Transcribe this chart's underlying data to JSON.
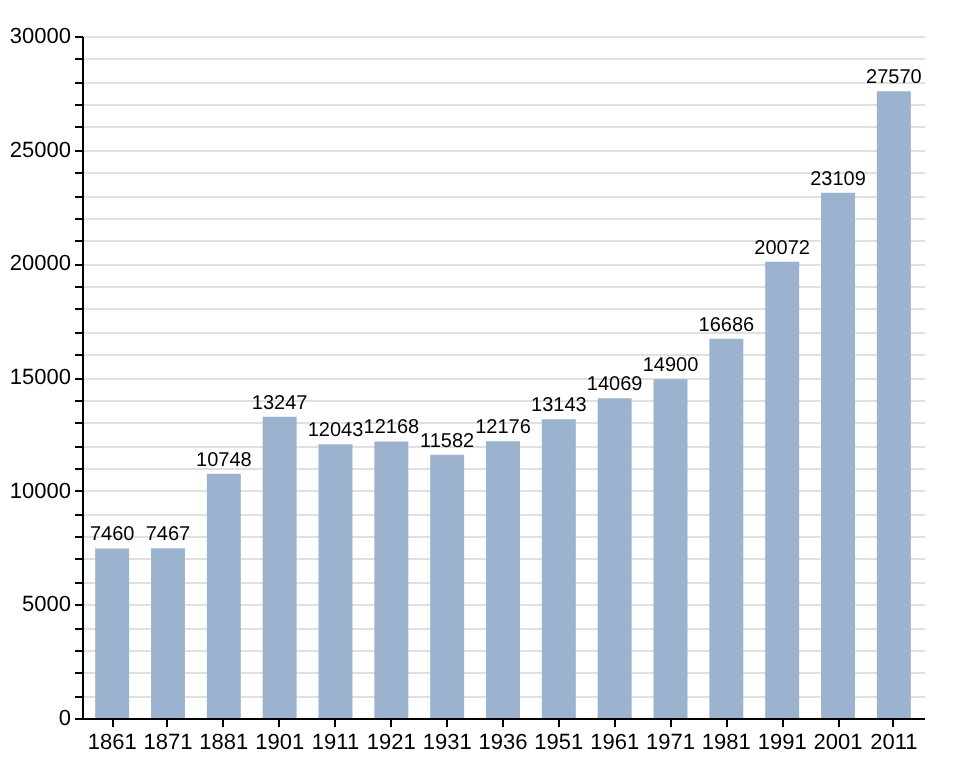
{
  "chart_data": {
    "type": "bar",
    "categories": [
      "1861",
      "1871",
      "1881",
      "1901",
      "1911",
      "1921",
      "1931",
      "1936",
      "1951",
      "1961",
      "1971",
      "1981",
      "1991",
      "2001",
      "2011"
    ],
    "values": [
      7460,
      7467,
      10748,
      13247,
      12043,
      12168,
      11582,
      12176,
      13143,
      14069,
      14900,
      16686,
      20072,
      23109,
      27570
    ],
    "color": "#9bb3cf",
    "ylim": [
      0,
      30000
    ],
    "yticks": [
      0,
      {
        "value": 1000,
        "label": null
      },
      {
        "value": 2000,
        "label": null
      },
      {
        "value": 3000,
        "label": null
      },
      {
        "value": 4000,
        "label": null
      },
      5000,
      {
        "value": 6000,
        "label": null
      },
      {
        "value": 7000,
        "label": null
      },
      {
        "value": 8000,
        "label": null
      },
      {
        "value": 9000,
        "label": null
      },
      10000,
      {
        "value": 11000,
        "label": null
      },
      {
        "value": 12000,
        "label": null
      },
      {
        "value": 13000,
        "label": null
      },
      {
        "value": 14000,
        "label": null
      },
      15000,
      {
        "value": 16000,
        "label": null
      },
      {
        "value": 17000,
        "label": null
      },
      {
        "value": 18000,
        "label": null
      },
      {
        "value": 19000,
        "label": null
      },
      20000,
      {
        "value": 21000,
        "label": null
      },
      {
        "value": 22000,
        "label": null
      },
      {
        "value": 23000,
        "label": null
      },
      {
        "value": 24000,
        "label": null
      },
      25000,
      {
        "value": 26000,
        "label": null
      },
      {
        "value": 27000,
        "label": null
      },
      {
        "value": 28000,
        "label": null
      },
      {
        "value": 29000,
        "label": null
      },
      30000
    ],
    "grid": true,
    "data_labels": true
  }
}
